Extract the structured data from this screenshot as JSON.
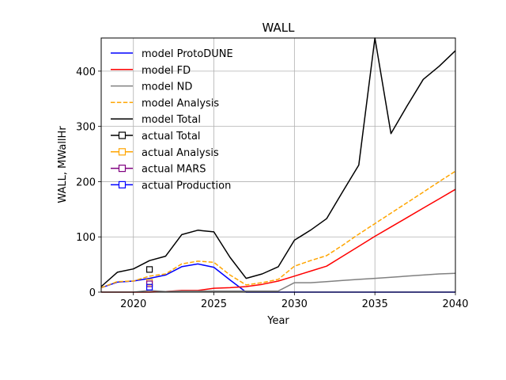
{
  "chart_data": {
    "type": "line",
    "title": "WALL",
    "xlabel": "Year",
    "ylabel": "WALL, MWallHr",
    "xlim": [
      2018,
      2040
    ],
    "ylim": [
      0,
      460
    ],
    "xticks": [
      2020,
      2025,
      2030,
      2035,
      2040
    ],
    "yticks": [
      0,
      100,
      200,
      300,
      400
    ],
    "grid": true,
    "legend_position": "top-left",
    "series": [
      {
        "name": "model ProtoDUNE",
        "color": "#0000ff",
        "style": "solid",
        "x": [
          2018,
          2019,
          2020,
          2021,
          2022,
          2023,
          2024,
          2025,
          2026,
          2027,
          2028,
          2029,
          2030,
          2031,
          2032,
          2033,
          2034,
          2035,
          2036,
          2037,
          2038,
          2039,
          2040
        ],
        "y": [
          8,
          18,
          20,
          25,
          31,
          46,
          51,
          45,
          22,
          0,
          0,
          0,
          0,
          0,
          0,
          0,
          0,
          0,
          0,
          0,
          0,
          0,
          0
        ]
      },
      {
        "name": "model FD",
        "color": "#ff0000",
        "style": "solid",
        "x": [
          2018,
          2019,
          2020,
          2021,
          2022,
          2023,
          2024,
          2025,
          2026,
          2027,
          2028,
          2029,
          2030,
          2031,
          2032,
          2033,
          2034,
          2035,
          2036,
          2037,
          2038,
          2039,
          2040
        ],
        "y": [
          0,
          0,
          0,
          0,
          1,
          3,
          3,
          7,
          8,
          10,
          14,
          20,
          29,
          38,
          47,
          65,
          83,
          101,
          118,
          135,
          152,
          169,
          186
        ]
      },
      {
        "name": "model ND",
        "color": "#808080",
        "style": "solid",
        "x": [
          2018,
          2019,
          2020,
          2021,
          2022,
          2023,
          2024,
          2025,
          2026,
          2027,
          2028,
          2029,
          2030,
          2031,
          2032,
          2033,
          2034,
          2035,
          2036,
          2037,
          2038,
          2039,
          2040
        ],
        "y": [
          0,
          0,
          0,
          3,
          1,
          2,
          2,
          2,
          2,
          2,
          2,
          2,
          17,
          17,
          19,
          21,
          23,
          25,
          27,
          29,
          31,
          33,
          34
        ]
      },
      {
        "name": "model Analysis",
        "color": "#ffa500",
        "style": "dashed",
        "x": [
          2018,
          2019,
          2020,
          2021,
          2022,
          2023,
          2024,
          2025,
          2026,
          2027,
          2028,
          2029,
          2030,
          2031,
          2032,
          2033,
          2034,
          2035,
          2036,
          2037,
          2038,
          2039,
          2040
        ],
        "y": [
          8,
          19,
          20,
          29,
          33,
          51,
          56,
          54,
          31,
          13,
          17,
          23,
          47,
          57,
          66,
          85,
          105,
          124,
          143,
          162,
          181,
          200,
          219
        ]
      },
      {
        "name": "model Total",
        "color": "#000000",
        "style": "solid",
        "x": [
          2018,
          2019,
          2020,
          2021,
          2022,
          2023,
          2024,
          2025,
          2026,
          2027,
          2028,
          2029,
          2030,
          2031,
          2032,
          2033,
          2034,
          2035,
          2036,
          2037,
          2038,
          2039,
          2040
        ],
        "y": [
          10,
          36,
          42,
          57,
          65,
          104,
          112,
          109,
          63,
          25,
          33,
          46,
          94,
          112,
          133,
          182,
          230,
          478,
          287,
          337,
          385,
          409,
          437
        ]
      },
      {
        "name": "actual Total",
        "color": "#000000",
        "style": "marker",
        "x": [
          2021
        ],
        "y": [
          41
        ]
      },
      {
        "name": "actual Analysis",
        "color": "#ffa500",
        "style": "marker",
        "x": [
          2021
        ],
        "y": [
          18
        ]
      },
      {
        "name": "actual MARS",
        "color": "#800080",
        "style": "marker",
        "x": [
          2021
        ],
        "y": [
          15
        ]
      },
      {
        "name": "actual Production",
        "color": "#0000ff",
        "style": "marker",
        "x": [
          2021
        ],
        "y": [
          9
        ]
      }
    ]
  }
}
